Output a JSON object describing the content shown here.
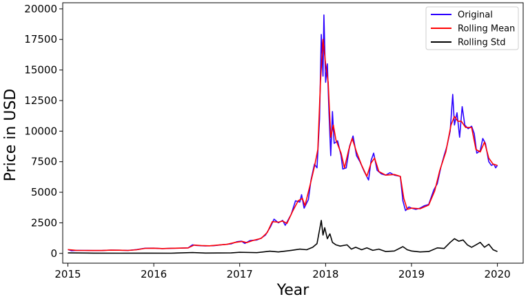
{
  "chart_data": {
    "type": "line",
    "title": "",
    "xlabel": "Year",
    "ylabel": "Price in USD",
    "xlim": [
      2014.94,
      2020.3
    ],
    "ylim": [
      -800,
      20500
    ],
    "x_ticks": [
      2015,
      2016,
      2017,
      2018,
      2019,
      2020
    ],
    "x_tick_labels": [
      "2015",
      "2016",
      "2017",
      "2018",
      "2019",
      "2020"
    ],
    "y_ticks": [
      0,
      2500,
      5000,
      7500,
      10000,
      12500,
      15000,
      17500,
      20000
    ],
    "y_tick_labels": [
      "0",
      "2500",
      "5000",
      "7500",
      "10000",
      "12500",
      "15000",
      "17500",
      "20000"
    ],
    "grid": false,
    "legend_position": "top-right",
    "series": [
      {
        "name": "Original",
        "color": "#2a00ff",
        "points": [
          [
            2015.0,
            320
          ],
          [
            2015.04,
            220
          ],
          [
            2015.1,
            250
          ],
          [
            2015.2,
            240
          ],
          [
            2015.3,
            230
          ],
          [
            2015.4,
            235
          ],
          [
            2015.5,
            270
          ],
          [
            2015.6,
            260
          ],
          [
            2015.7,
            240
          ],
          [
            2015.8,
            310
          ],
          [
            2015.9,
            420
          ],
          [
            2016.0,
            430
          ],
          [
            2016.1,
            390
          ],
          [
            2016.2,
            415
          ],
          [
            2016.3,
            430
          ],
          [
            2016.4,
            450
          ],
          [
            2016.45,
            700
          ],
          [
            2016.5,
            650
          ],
          [
            2016.6,
            610
          ],
          [
            2016.7,
            630
          ],
          [
            2016.8,
            710
          ],
          [
            2016.9,
            780
          ],
          [
            2016.97,
            960
          ],
          [
            2017.02,
            1000
          ],
          [
            2017.06,
            820
          ],
          [
            2017.12,
            1050
          ],
          [
            2017.2,
            1100
          ],
          [
            2017.25,
            1250
          ],
          [
            2017.3,
            1500
          ],
          [
            2017.36,
            2200
          ],
          [
            2017.4,
            2800
          ],
          [
            2017.45,
            2500
          ],
          [
            2017.5,
            2700
          ],
          [
            2017.53,
            2300
          ],
          [
            2017.6,
            3200
          ],
          [
            2017.65,
            4300
          ],
          [
            2017.7,
            4200
          ],
          [
            2017.72,
            4800
          ],
          [
            2017.75,
            3700
          ],
          [
            2017.8,
            4400
          ],
          [
            2017.83,
            6000
          ],
          [
            2017.87,
            7300
          ],
          [
            2017.9,
            7000
          ],
          [
            2017.93,
            11000
          ],
          [
            2017.95,
            17900
          ],
          [
            2017.97,
            14500
          ],
          [
            2017.98,
            19500
          ],
          [
            2018.0,
            14000
          ],
          [
            2018.02,
            15500
          ],
          [
            2018.04,
            11500
          ],
          [
            2018.06,
            8000
          ],
          [
            2018.08,
            11600
          ],
          [
            2018.1,
            9000
          ],
          [
            2018.14,
            9200
          ],
          [
            2018.18,
            8000
          ],
          [
            2018.2,
            6900
          ],
          [
            2018.24,
            7000
          ],
          [
            2018.28,
            8800
          ],
          [
            2018.32,
            9600
          ],
          [
            2018.36,
            8000
          ],
          [
            2018.4,
            7500
          ],
          [
            2018.45,
            6700
          ],
          [
            2018.5,
            6000
          ],
          [
            2018.53,
            7600
          ],
          [
            2018.56,
            8200
          ],
          [
            2018.6,
            6800
          ],
          [
            2018.65,
            6500
          ],
          [
            2018.7,
            6400
          ],
          [
            2018.75,
            6600
          ],
          [
            2018.8,
            6400
          ],
          [
            2018.87,
            6300
          ],
          [
            2018.9,
            4300
          ],
          [
            2018.93,
            3500
          ],
          [
            2018.97,
            3800
          ],
          [
            2019.0,
            3700
          ],
          [
            2019.05,
            3600
          ],
          [
            2019.1,
            3700
          ],
          [
            2019.15,
            3900
          ],
          [
            2019.2,
            4000
          ],
          [
            2019.26,
            5200
          ],
          [
            2019.3,
            5700
          ],
          [
            2019.34,
            7000
          ],
          [
            2019.38,
            8000
          ],
          [
            2019.41,
            8700
          ],
          [
            2019.45,
            10000
          ],
          [
            2019.48,
            13000
          ],
          [
            2019.5,
            10500
          ],
          [
            2019.53,
            11500
          ],
          [
            2019.56,
            9500
          ],
          [
            2019.59,
            12000
          ],
          [
            2019.62,
            10500
          ],
          [
            2019.66,
            10200
          ],
          [
            2019.7,
            10400
          ],
          [
            2019.73,
            9800
          ],
          [
            2019.76,
            8200
          ],
          [
            2019.8,
            8400
          ],
          [
            2019.83,
            9400
          ],
          [
            2019.86,
            9000
          ],
          [
            2019.9,
            7500
          ],
          [
            2019.93,
            7200
          ],
          [
            2019.96,
            7300
          ],
          [
            2019.98,
            7000
          ],
          [
            2020.0,
            7200
          ]
        ]
      },
      {
        "name": "Rolling Mean",
        "color": "#ff0000",
        "points": [
          [
            2015.0,
            310
          ],
          [
            2015.1,
            250
          ],
          [
            2015.2,
            245
          ],
          [
            2015.3,
            235
          ],
          [
            2015.4,
            235
          ],
          [
            2015.5,
            265
          ],
          [
            2015.6,
            260
          ],
          [
            2015.7,
            245
          ],
          [
            2015.8,
            300
          ],
          [
            2015.9,
            410
          ],
          [
            2016.0,
            425
          ],
          [
            2016.1,
            395
          ],
          [
            2016.2,
            415
          ],
          [
            2016.3,
            430
          ],
          [
            2016.4,
            450
          ],
          [
            2016.47,
            680
          ],
          [
            2016.55,
            640
          ],
          [
            2016.65,
            620
          ],
          [
            2016.75,
            680
          ],
          [
            2016.85,
            740
          ],
          [
            2016.95,
            900
          ],
          [
            2017.03,
            980
          ],
          [
            2017.08,
            880
          ],
          [
            2017.15,
            1050
          ],
          [
            2017.25,
            1230
          ],
          [
            2017.32,
            1700
          ],
          [
            2017.38,
            2600
          ],
          [
            2017.45,
            2550
          ],
          [
            2017.5,
            2650
          ],
          [
            2017.55,
            2450
          ],
          [
            2017.62,
            3500
          ],
          [
            2017.68,
            4300
          ],
          [
            2017.73,
            4500
          ],
          [
            2017.76,
            3900
          ],
          [
            2017.82,
            5600
          ],
          [
            2017.87,
            7100
          ],
          [
            2017.91,
            8500
          ],
          [
            2017.94,
            14000
          ],
          [
            2017.97,
            17500
          ],
          [
            2018.0,
            15500
          ],
          [
            2018.03,
            14000
          ],
          [
            2018.06,
            9500
          ],
          [
            2018.09,
            10500
          ],
          [
            2018.12,
            9300
          ],
          [
            2018.18,
            8200
          ],
          [
            2018.22,
            7000
          ],
          [
            2018.27,
            8500
          ],
          [
            2018.31,
            9400
          ],
          [
            2018.36,
            8300
          ],
          [
            2018.42,
            7200
          ],
          [
            2018.48,
            6300
          ],
          [
            2018.53,
            7400
          ],
          [
            2018.57,
            7800
          ],
          [
            2018.62,
            6700
          ],
          [
            2018.7,
            6400
          ],
          [
            2018.8,
            6450
          ],
          [
            2018.87,
            6300
          ],
          [
            2018.91,
            4500
          ],
          [
            2018.95,
            3600
          ],
          [
            2019.0,
            3700
          ],
          [
            2019.1,
            3650
          ],
          [
            2019.2,
            3950
          ],
          [
            2019.27,
            5100
          ],
          [
            2019.33,
            6800
          ],
          [
            2019.4,
            8300
          ],
          [
            2019.46,
            10500
          ],
          [
            2019.5,
            11200
          ],
          [
            2019.54,
            10800
          ],
          [
            2019.58,
            10800
          ],
          [
            2019.63,
            10300
          ],
          [
            2019.7,
            10300
          ],
          [
            2019.75,
            8500
          ],
          [
            2019.8,
            8300
          ],
          [
            2019.85,
            9100
          ],
          [
            2019.9,
            7800
          ],
          [
            2019.95,
            7300
          ],
          [
            2020.0,
            7200
          ]
        ]
      },
      {
        "name": "Rolling Std",
        "color": "#000000",
        "points": [
          [
            2015.0,
            40
          ],
          [
            2015.3,
            20
          ],
          [
            2015.6,
            15
          ],
          [
            2015.9,
            25
          ],
          [
            2016.2,
            15
          ],
          [
            2016.45,
            70
          ],
          [
            2016.6,
            30
          ],
          [
            2016.9,
            40
          ],
          [
            2017.0,
            90
          ],
          [
            2017.2,
            60
          ],
          [
            2017.35,
            180
          ],
          [
            2017.45,
            120
          ],
          [
            2017.6,
            250
          ],
          [
            2017.7,
            350
          ],
          [
            2017.78,
            300
          ],
          [
            2017.85,
            500
          ],
          [
            2017.9,
            800
          ],
          [
            2017.95,
            2700
          ],
          [
            2017.97,
            1500
          ],
          [
            2017.99,
            2100
          ],
          [
            2018.02,
            1200
          ],
          [
            2018.05,
            1600
          ],
          [
            2018.08,
            900
          ],
          [
            2018.12,
            700
          ],
          [
            2018.17,
            600
          ],
          [
            2018.25,
            700
          ],
          [
            2018.3,
            350
          ],
          [
            2018.35,
            500
          ],
          [
            2018.42,
            300
          ],
          [
            2018.48,
            450
          ],
          [
            2018.55,
            250
          ],
          [
            2018.62,
            350
          ],
          [
            2018.7,
            150
          ],
          [
            2018.8,
            200
          ],
          [
            2018.9,
            550
          ],
          [
            2018.95,
            300
          ],
          [
            2019.0,
            200
          ],
          [
            2019.1,
            120
          ],
          [
            2019.2,
            150
          ],
          [
            2019.3,
            450
          ],
          [
            2019.38,
            400
          ],
          [
            2019.45,
            900
          ],
          [
            2019.5,
            1200
          ],
          [
            2019.55,
            1000
          ],
          [
            2019.6,
            1100
          ],
          [
            2019.65,
            700
          ],
          [
            2019.7,
            500
          ],
          [
            2019.75,
            700
          ],
          [
            2019.8,
            900
          ],
          [
            2019.85,
            500
          ],
          [
            2019.9,
            750
          ],
          [
            2019.95,
            300
          ],
          [
            2020.0,
            150
          ]
        ]
      }
    ]
  }
}
